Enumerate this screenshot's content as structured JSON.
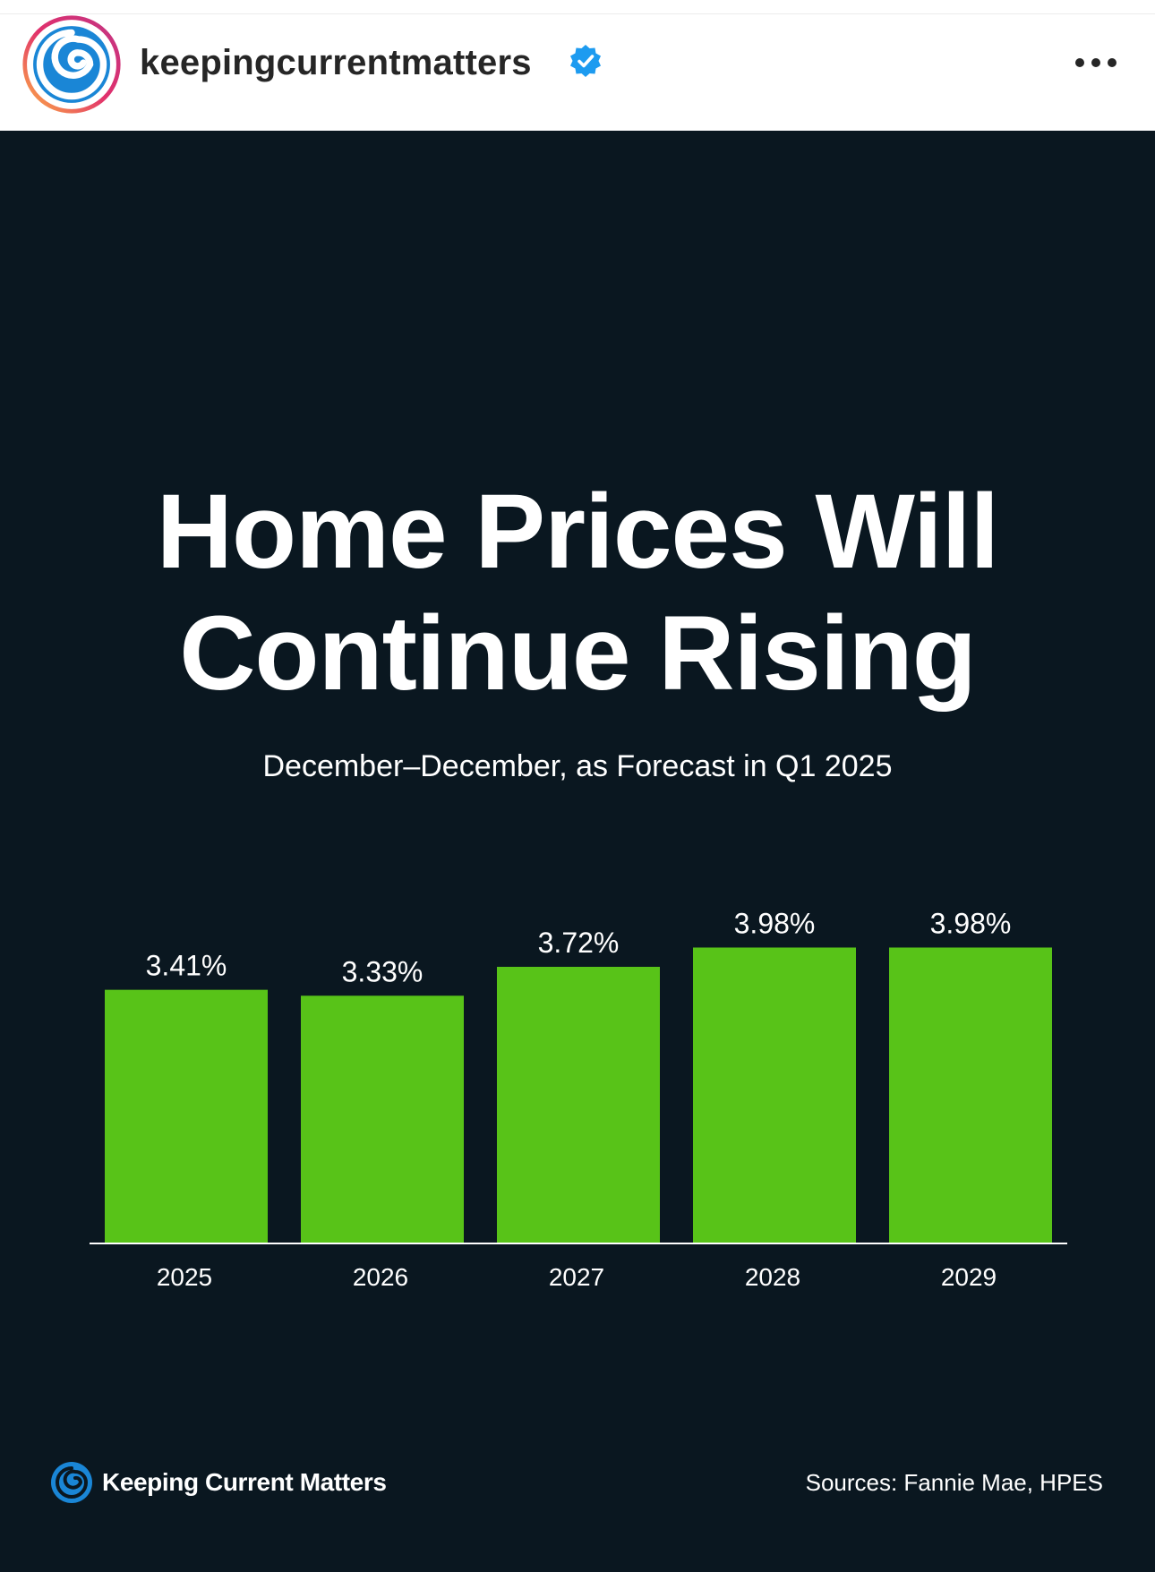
{
  "header": {
    "username": "keepingcurrentmatters",
    "verified_icon": "verified-badge-icon",
    "more_icon": "ellipsis-icon"
  },
  "post": {
    "title_line1": "Home Prices Will",
    "title_line2": "Continue Rising",
    "subtitle": "December–December, as Forecast in Q1 2025",
    "brand": "Keeping Current Matters",
    "sources": "Sources: Fannie Mae, HPES"
  },
  "colors": {
    "background": "#0a1720",
    "bar": "#58c318",
    "text": "#ffffff",
    "verified": "#1d9bf0"
  },
  "chart_data": {
    "type": "bar",
    "title": "Home Prices Will Continue Rising",
    "subtitle": "December–December, as Forecast in Q1 2025",
    "categories": [
      "2025",
      "2026",
      "2027",
      "2028",
      "2029"
    ],
    "values": [
      3.41,
      3.33,
      3.72,
      3.98,
      3.98
    ],
    "labels": [
      "3.41%",
      "3.33%",
      "3.72%",
      "3.98%",
      "3.98%"
    ],
    "xlabel": "",
    "ylabel": "",
    "ylim": [
      0,
      4
    ],
    "grid": false
  }
}
